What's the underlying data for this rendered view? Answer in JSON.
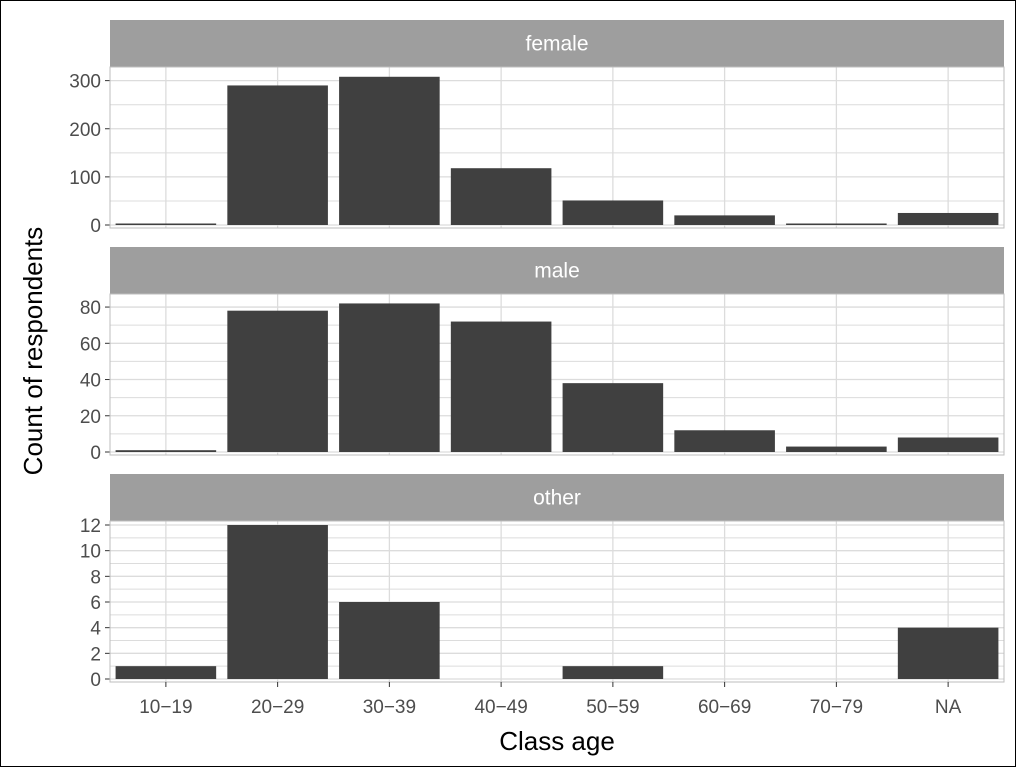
{
  "chart_data": {
    "type": "bar",
    "xlabel": "Class age",
    "ylabel": "Count of respondents",
    "categories": [
      "10−19",
      "20−29",
      "30−39",
      "40−49",
      "50−59",
      "60−69",
      "70−79",
      "NA"
    ],
    "facets": [
      {
        "name": "female",
        "values": [
          1,
          290,
          308,
          118,
          51,
          20,
          1,
          25
        ],
        "ylim": [
          0,
          320
        ],
        "yticks": [
          0,
          100,
          200,
          300
        ]
      },
      {
        "name": "male",
        "values": [
          1,
          78,
          82,
          72,
          38,
          12,
          3,
          8
        ],
        "ylim": [
          0,
          85
        ],
        "yticks": [
          0,
          20,
          40,
          60,
          80
        ]
      },
      {
        "name": "other",
        "values": [
          1,
          12,
          6,
          0,
          1,
          0,
          0,
          4
        ],
        "ylim": [
          0,
          12
        ],
        "yticks": [
          0,
          2,
          4,
          6,
          8,
          10,
          12
        ]
      }
    ],
    "grid": true,
    "colors": {
      "bar": "#404040",
      "strip": "#9e9e9e",
      "grid": "#dcdcdc",
      "panel_border": "#bdbdbd"
    }
  }
}
